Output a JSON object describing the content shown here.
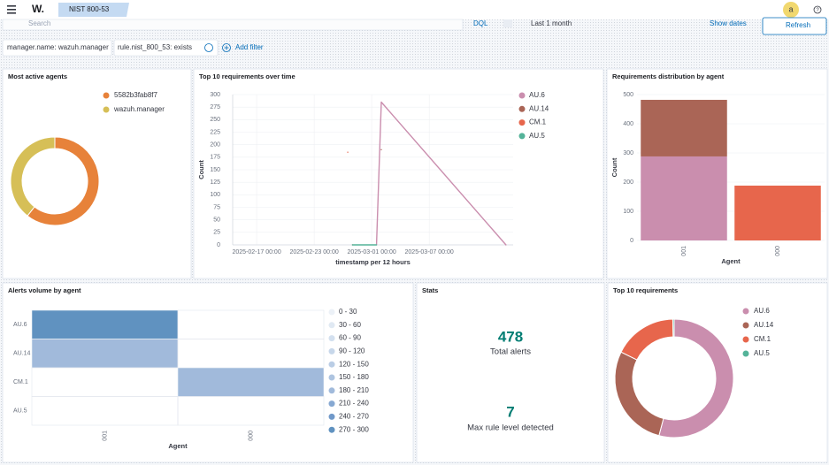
{
  "header": {
    "logo": "W.",
    "tab": "NIST 800-53",
    "avatar": "a",
    "help": "?"
  },
  "search": {
    "placeholder": "Search",
    "language": "DQL",
    "time": "Last 1 month",
    "show_dates": "Show dates",
    "refresh": "Refresh"
  },
  "filters": [
    "manager.name: wazuh.manager",
    "rule.nist_800_53: exists"
  ],
  "add_filter": "Add filter",
  "chart_data": [
    {
      "type": "pie",
      "title": "Most active agents",
      "donut": true,
      "legend": "right",
      "categories": [
        "5582b3fab8f7",
        "wazuh.manager"
      ],
      "values": [
        290,
        188
      ],
      "colors": [
        "#e7823a",
        "#d6bf57"
      ]
    },
    {
      "type": "line",
      "title": "Top 10 requirements over time",
      "xlabel": "timestamp per 12 hours",
      "ylabel": "Count",
      "grid": true,
      "legend": "right",
      "x": [
        "2025-02-26 12:00",
        "2025-02-27 00:00",
        "2025-03-01 12:00",
        "2025-03-02 00:00",
        "2025-03-15 00:00"
      ],
      "xlim": [
        "2025-02-14 12:00",
        "2025-03-15 18:00"
      ],
      "xticks": [
        "2025-02-17 00:00",
        "2025-02-23 00:00",
        "2025-03-01 00:00",
        "2025-03-07 00:00"
      ],
      "ylim": [
        0,
        300
      ],
      "yticks": [
        0,
        25,
        50,
        75,
        100,
        125,
        150,
        175,
        200,
        225,
        250,
        275,
        300
      ],
      "series": [
        {
          "name": "AU.6",
          "color": "#ca8eae",
          "values": [
            null,
            null,
            0,
            285,
            0
          ]
        },
        {
          "name": "AU.14",
          "color": "#aa6556",
          "values": [
            null,
            0,
            null,
            190,
            null
          ]
        },
        {
          "name": "CM.1",
          "color": "#e7664c",
          "values": [
            185,
            null,
            null,
            null,
            null
          ]
        },
        {
          "name": "AU.5",
          "color": "#54b399",
          "values": [
            null,
            0,
            0,
            null,
            null
          ]
        }
      ]
    },
    {
      "type": "stacked-bar",
      "title": "Requirements distribution by agent",
      "xlabel": "Agent",
      "ylabel": "Count",
      "grid": true,
      "categories": [
        "001",
        "000"
      ],
      "ylim": [
        0,
        500
      ],
      "yticks": [
        0,
        100,
        200,
        300,
        400,
        500
      ],
      "series": [
        {
          "color": "#ca8eae",
          "values": [
            288,
            0
          ]
        },
        {
          "color": "#aa6556",
          "values": [
            194,
            0
          ]
        },
        {
          "color": "#e7664c",
          "values": [
            0,
            188
          ]
        }
      ]
    },
    {
      "type": "heatmap",
      "title": "Alerts volume by agent",
      "xlabel": "Agent",
      "rows": [
        "AU.6",
        "AU.14",
        "CM.1",
        "AU.5"
      ],
      "columns": [
        "001",
        "000"
      ],
      "values": [
        [
          288,
          null
        ],
        [
          194,
          null
        ],
        [
          null,
          188
        ],
        [
          null,
          null
        ]
      ],
      "bins": [
        0,
        30,
        60,
        90,
        120,
        150,
        180,
        210,
        240,
        270,
        300
      ],
      "bin_labels": [
        "0 - 30",
        "30 - 60",
        "60 - 90",
        "90 - 120",
        "120 - 150",
        "150 - 180",
        "180 - 210",
        "210 - 240",
        "240 - 270",
        "270 - 300"
      ],
      "colors": [
        "#ecf1f7",
        "#e0e9f3",
        "#d3e0ef",
        "#c7d7ea",
        "#bacde5",
        "#aec4e0",
        "#a1badb",
        "#86a8d2",
        "#7099c9",
        "#6092c0"
      ]
    },
    {
      "type": "pie",
      "title": "Top 10 requirements",
      "donut": true,
      "legend": "right",
      "categories": [
        "AU.6",
        "AU.14",
        "CM.1",
        "AU.5"
      ],
      "values": [
        288,
        150,
        92,
        2
      ],
      "colors": [
        "#ca8eae",
        "#aa6556",
        "#e7664c",
        "#54b399"
      ]
    }
  ],
  "stats": {
    "title": "Stats",
    "items": [
      {
        "value": 478,
        "label": "Total alerts"
      },
      {
        "value": 7,
        "label": "Max rule level detected"
      }
    ]
  }
}
